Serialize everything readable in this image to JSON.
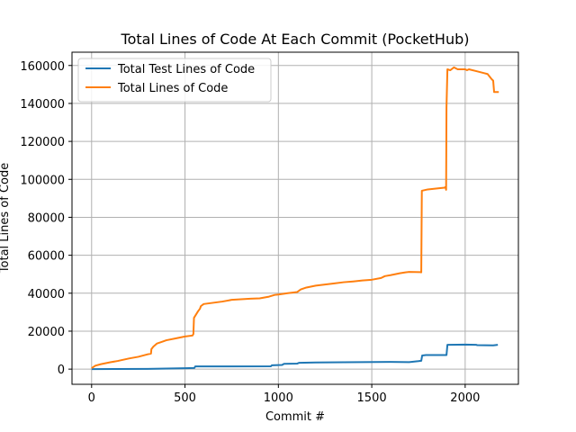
{
  "chart_data": {
    "type": "line",
    "title": "Total Lines of Code At Each Commit (PocketHub)",
    "xlabel": "Commit #",
    "ylabel": "Total Lines of Code",
    "xlim": [
      -105,
      2285
    ],
    "ylim": [
      -8000,
      167000
    ],
    "xticks": [
      0,
      500,
      1000,
      1500,
      2000
    ],
    "yticks": [
      0,
      20000,
      40000,
      60000,
      80000,
      100000,
      120000,
      140000,
      160000
    ],
    "grid": true,
    "legend_position": "top-left",
    "series": [
      {
        "name": "Total Test Lines of Code",
        "color": "#1f77b4",
        "points": [
          [
            0,
            0
          ],
          [
            300,
            100
          ],
          [
            500,
            500
          ],
          [
            550,
            600
          ],
          [
            555,
            1400
          ],
          [
            960,
            1500
          ],
          [
            965,
            2000
          ],
          [
            1020,
            2200
          ],
          [
            1030,
            2800
          ],
          [
            1100,
            2900
          ],
          [
            1110,
            3300
          ],
          [
            1200,
            3500
          ],
          [
            1350,
            3600
          ],
          [
            1600,
            3800
          ],
          [
            1700,
            3700
          ],
          [
            1750,
            4200
          ],
          [
            1765,
            4400
          ],
          [
            1770,
            7200
          ],
          [
            1790,
            7400
          ],
          [
            1900,
            7400
          ],
          [
            1905,
            12800
          ],
          [
            2000,
            12900
          ],
          [
            2060,
            12800
          ],
          [
            2065,
            12600
          ],
          [
            2150,
            12500
          ],
          [
            2175,
            12800
          ]
        ]
      },
      {
        "name": "Total Lines of Code",
        "color": "#ff7f0e",
        "points": [
          [
            0,
            500
          ],
          [
            20,
            1800
          ],
          [
            50,
            2600
          ],
          [
            100,
            3600
          ],
          [
            140,
            4300
          ],
          [
            200,
            5600
          ],
          [
            250,
            6500
          ],
          [
            300,
            7800
          ],
          [
            318,
            8200
          ],
          [
            320,
            10500
          ],
          [
            330,
            11800
          ],
          [
            350,
            13500
          ],
          [
            380,
            14500
          ],
          [
            400,
            15200
          ],
          [
            450,
            16200
          ],
          [
            500,
            17200
          ],
          [
            540,
            17700
          ],
          [
            545,
            18500
          ],
          [
            548,
            27000
          ],
          [
            570,
            30500
          ],
          [
            580,
            31800
          ],
          [
            585,
            33200
          ],
          [
            600,
            34300
          ],
          [
            700,
            35600
          ],
          [
            750,
            36500
          ],
          [
            850,
            37100
          ],
          [
            900,
            37300
          ],
          [
            950,
            38200
          ],
          [
            980,
            39100
          ],
          [
            1000,
            39300
          ],
          [
            1050,
            40000
          ],
          [
            1100,
            40600
          ],
          [
            1120,
            42000
          ],
          [
            1150,
            43000
          ],
          [
            1200,
            44000
          ],
          [
            1250,
            44600
          ],
          [
            1300,
            45200
          ],
          [
            1350,
            45800
          ],
          [
            1400,
            46200
          ],
          [
            1450,
            46700
          ],
          [
            1500,
            47100
          ],
          [
            1550,
            48000
          ],
          [
            1570,
            49000
          ],
          [
            1600,
            49500
          ],
          [
            1650,
            50500
          ],
          [
            1680,
            51000
          ],
          [
            1700,
            51200
          ],
          [
            1760,
            51100
          ],
          [
            1765,
            51000
          ],
          [
            1768,
            94000
          ],
          [
            1800,
            94700
          ],
          [
            1850,
            95200
          ],
          [
            1890,
            95600
          ],
          [
            1895,
            96000
          ],
          [
            1898,
            94500
          ],
          [
            1900,
            138000
          ],
          [
            1905,
            158000
          ],
          [
            1920,
            157500
          ],
          [
            1940,
            159000
          ],
          [
            1960,
            158000
          ],
          [
            2000,
            158000
          ],
          [
            2010,
            157500
          ],
          [
            2020,
            158000
          ],
          [
            2060,
            157000
          ],
          [
            2100,
            156000
          ],
          [
            2120,
            155500
          ],
          [
            2140,
            153000
          ],
          [
            2150,
            152000
          ],
          [
            2155,
            146000
          ],
          [
            2180,
            146000
          ]
        ]
      }
    ]
  }
}
